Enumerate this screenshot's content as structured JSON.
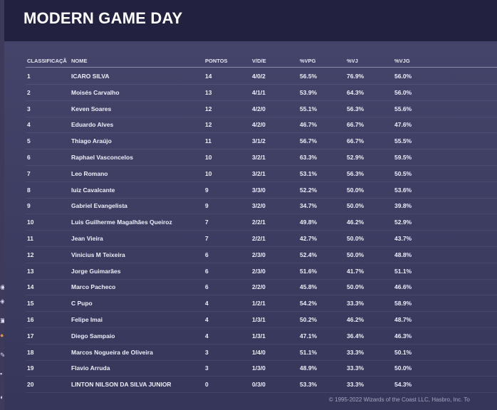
{
  "page": {
    "title": "MODERN GAME DAY"
  },
  "table": {
    "columns": [
      "CLASSIFICAÇÃO",
      "NOME",
      "PONTOS",
      "V/D/E",
      "%VPG",
      "%VJ",
      "%VJG"
    ],
    "rows": [
      {
        "rank": "1",
        "name": "ICARO SILVA",
        "points": "14",
        "record": "4/0/2",
        "vpg": "56.5%",
        "vj": "76.9%",
        "vjg": "56.0%"
      },
      {
        "rank": "2",
        "name": "Moisés Carvalho",
        "points": "13",
        "record": "4/1/1",
        "vpg": "53.9%",
        "vj": "64.3%",
        "vjg": "56.0%"
      },
      {
        "rank": "3",
        "name": "Keven Soares",
        "points": "12",
        "record": "4/2/0",
        "vpg": "55.1%",
        "vj": "56.3%",
        "vjg": "55.6%"
      },
      {
        "rank": "4",
        "name": "Eduardo Alves",
        "points": "12",
        "record": "4/2/0",
        "vpg": "46.7%",
        "vj": "66.7%",
        "vjg": "47.6%"
      },
      {
        "rank": "5",
        "name": "Thiago Araújo",
        "points": "11",
        "record": "3/1/2",
        "vpg": "56.7%",
        "vj": "66.7%",
        "vjg": "55.5%"
      },
      {
        "rank": "6",
        "name": "Raphael Vasconcelos",
        "points": "10",
        "record": "3/2/1",
        "vpg": "63.3%",
        "vj": "52.9%",
        "vjg": "59.5%"
      },
      {
        "rank": "7",
        "name": "Leo Romano",
        "points": "10",
        "record": "3/2/1",
        "vpg": "53.1%",
        "vj": "56.3%",
        "vjg": "50.5%"
      },
      {
        "rank": "8",
        "name": "luiz Cavalcante",
        "points": "9",
        "record": "3/3/0",
        "vpg": "52.2%",
        "vj": "50.0%",
        "vjg": "53.6%"
      },
      {
        "rank": "9",
        "name": "Gabriel Evangelista",
        "points": "9",
        "record": "3/2/0",
        "vpg": "34.7%",
        "vj": "50.0%",
        "vjg": "39.8%"
      },
      {
        "rank": "10",
        "name": "Luis Guilherme Magalhães Queiroz",
        "points": "7",
        "record": "2/2/1",
        "vpg": "49.8%",
        "vj": "46.2%",
        "vjg": "52.9%"
      },
      {
        "rank": "11",
        "name": "Jean Vieira",
        "points": "7",
        "record": "2/2/1",
        "vpg": "42.7%",
        "vj": "50.0%",
        "vjg": "43.7%"
      },
      {
        "rank": "12",
        "name": "Vinicius M Teixeira",
        "points": "6",
        "record": "2/3/0",
        "vpg": "52.4%",
        "vj": "50.0%",
        "vjg": "48.8%"
      },
      {
        "rank": "13",
        "name": "Jorge Guimarães",
        "points": "6",
        "record": "2/3/0",
        "vpg": "51.6%",
        "vj": "41.7%",
        "vjg": "51.1%"
      },
      {
        "rank": "14",
        "name": "Marco Pacheco",
        "points": "6",
        "record": "2/2/0",
        "vpg": "45.8%",
        "vj": "50.0%",
        "vjg": "46.6%"
      },
      {
        "rank": "15",
        "name": "C Pupo",
        "points": "4",
        "record": "1/2/1",
        "vpg": "54.2%",
        "vj": "33.3%",
        "vjg": "58.9%"
      },
      {
        "rank": "16",
        "name": "Felipe Imai",
        "points": "4",
        "record": "1/3/1",
        "vpg": "50.2%",
        "vj": "46.2%",
        "vjg": "48.7%"
      },
      {
        "rank": "17",
        "name": "Diego Sampaio",
        "points": "4",
        "record": "1/3/1",
        "vpg": "47.1%",
        "vj": "36.4%",
        "vjg": "46.3%"
      },
      {
        "rank": "18",
        "name": "Marcos Nogueira de Oliveira",
        "points": "3",
        "record": "1/4/0",
        "vpg": "51.1%",
        "vj": "33.3%",
        "vjg": "50.1%"
      },
      {
        "rank": "19",
        "name": "Flavio Arruda",
        "points": "3",
        "record": "1/3/0",
        "vpg": "48.9%",
        "vj": "33.3%",
        "vjg": "50.0%"
      },
      {
        "rank": "20",
        "name": "LINTON NILSON DA SILVA JUNIOR",
        "points": "0",
        "record": "0/3/0",
        "vpg": "53.3%",
        "vj": "33.3%",
        "vjg": "54.3%"
      }
    ]
  },
  "footer": {
    "copyright": "© 1995-2022 Wizards of the Coast LLC, Hasbro, Inc. To"
  },
  "colors": {
    "banner": "#232140",
    "panel": "#3d3d62",
    "text": "#eeeef8",
    "side_strip": "#3d3a5a",
    "side_accent": "#e8913a"
  }
}
